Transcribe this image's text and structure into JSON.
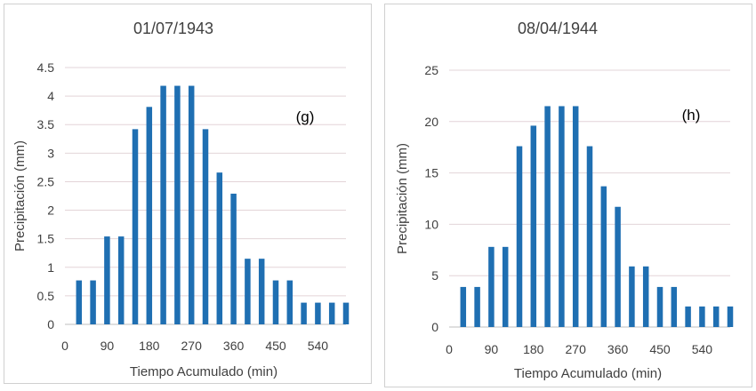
{
  "chart_data": [
    {
      "type": "bar",
      "title": "01/07/1943",
      "annotation": "(g)",
      "xlabel": "Tiempo Acumulado (min)",
      "ylabel": "Precipitación (mm)",
      "x": [
        30,
        60,
        90,
        120,
        150,
        180,
        210,
        240,
        270,
        300,
        330,
        360,
        390,
        420,
        450,
        480,
        510,
        540,
        570,
        600
      ],
      "values": [
        0.77,
        0.77,
        1.54,
        1.54,
        3.42,
        3.81,
        4.18,
        4.18,
        4.18,
        3.42,
        2.66,
        2.29,
        1.15,
        1.15,
        0.77,
        0.77,
        0.38,
        0.38,
        0.38,
        0.38
      ],
      "xticks": [
        "0",
        "90",
        "180",
        "270",
        "360",
        "450",
        "540"
      ],
      "yticks": [
        "0",
        "0.5",
        "1",
        "1.5",
        "2",
        "2.5",
        "3",
        "3.5",
        "4",
        "4.5"
      ],
      "ylim": [
        0,
        4.5
      ],
      "xlim": [
        0,
        600
      ],
      "grid": true,
      "color": "#1f6fb2"
    },
    {
      "type": "bar",
      "title": "08/04/1944",
      "annotation": "(h)",
      "xlabel": "Tiempo Acumulado (min)",
      "ylabel": "Precipitación (mm)",
      "x": [
        30,
        60,
        90,
        120,
        150,
        180,
        210,
        240,
        270,
        300,
        330,
        360,
        390,
        420,
        450,
        480,
        510,
        540,
        570,
        600
      ],
      "values": [
        3.9,
        3.9,
        7.8,
        7.8,
        17.6,
        19.6,
        21.5,
        21.5,
        21.5,
        17.6,
        13.7,
        11.7,
        5.9,
        5.9,
        3.9,
        3.9,
        2.0,
        2.0,
        2.0,
        2.0
      ],
      "xticks": [
        "0",
        "90",
        "180",
        "270",
        "360",
        "450",
        "540"
      ],
      "yticks": [
        "0",
        "5",
        "10",
        "15",
        "20",
        "25"
      ],
      "ylim": [
        0,
        25
      ],
      "xlim": [
        0,
        600
      ],
      "grid": true,
      "color": "#1f6fb2"
    }
  ]
}
